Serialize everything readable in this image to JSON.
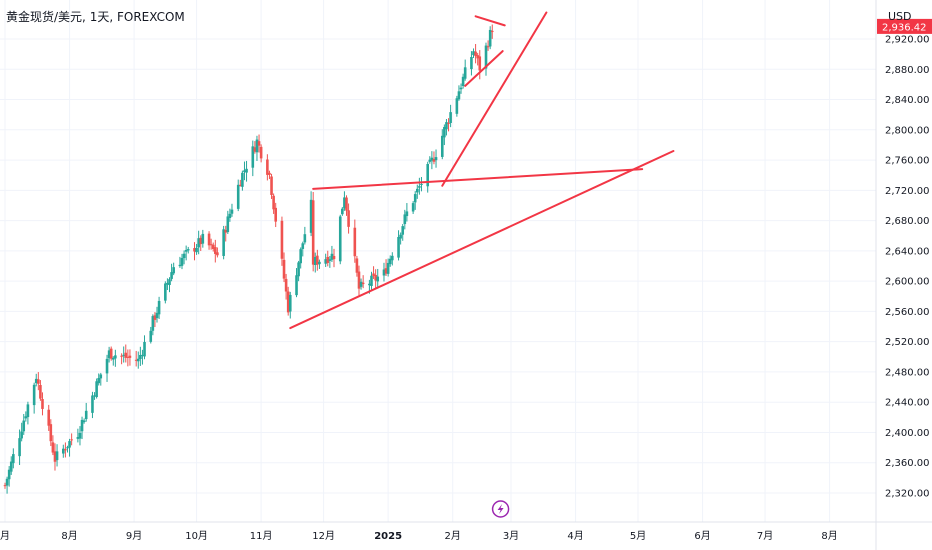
{
  "header": {
    "symbol": "黄金现货/美元",
    "interval": "1天",
    "exchange": "FOREXCOM",
    "currency": "USD"
  },
  "colors": {
    "up": "#26a69a",
    "down": "#ef5350",
    "drawing": "#f23645",
    "grid": "#f0f3fa",
    "axis": "#e0e3eb",
    "price_tag": "#f23645",
    "event_icon": "#9c27b0"
  },
  "chart_data": {
    "type": "candlestick",
    "x_axis": {
      "labels": [
        {
          "label": "月",
          "date": "2024-07-01",
          "bold": false
        },
        {
          "label": "8月",
          "date": "2024-08-01",
          "bold": false
        },
        {
          "label": "9月",
          "date": "2024-09-01",
          "bold": false
        },
        {
          "label": "10月",
          "date": "2024-10-01",
          "bold": false
        },
        {
          "label": "11月",
          "date": "2024-11-01",
          "bold": false
        },
        {
          "label": "12月",
          "date": "2024-12-01",
          "bold": false
        },
        {
          "label": "2025",
          "date": "2025-01-01",
          "bold": true
        },
        {
          "label": "2月",
          "date": "2025-02-01",
          "bold": false
        },
        {
          "label": "3月",
          "date": "2025-03-01",
          "bold": false
        },
        {
          "label": "4月",
          "date": "2025-04-01",
          "bold": false
        },
        {
          "label": "5月",
          "date": "2025-05-01",
          "bold": false
        },
        {
          "label": "6月",
          "date": "2025-06-01",
          "bold": false
        },
        {
          "label": "7月",
          "date": "2025-07-01",
          "bold": false
        },
        {
          "label": "8月",
          "date": "2025-08-01",
          "bold": false
        }
      ]
    },
    "y_axis": {
      "range": [
        2290,
        2975
      ],
      "ticks": [
        "2,320.00",
        "2,360.00",
        "2,400.00",
        "2,440.00",
        "2,480.00",
        "2,520.00",
        "2,560.00",
        "2,600.00",
        "2,640.00",
        "2,680.00",
        "2,720.00",
        "2,760.00",
        "2,800.00",
        "2,840.00",
        "2,880.00",
        "2,920.00"
      ]
    },
    "last_price": {
      "value": 2936,
      "label": "2,936.42"
    },
    "anchors": [
      [
        "2024-07-01",
        2330
      ],
      [
        "2024-07-16",
        2475
      ],
      [
        "2024-07-25",
        2365
      ],
      [
        "2024-08-05",
        2400
      ],
      [
        "2024-08-20",
        2505
      ],
      [
        "2024-09-03",
        2495
      ],
      [
        "2024-09-20",
        2620
      ],
      [
        "2024-10-04",
        2655
      ],
      [
        "2024-10-11",
        2635
      ],
      [
        "2024-10-22",
        2735
      ],
      [
        "2024-10-30",
        2785
      ],
      [
        "2024-11-05",
        2740
      ],
      [
        "2024-11-14",
        2565
      ],
      [
        "2024-11-25",
        2700
      ],
      [
        "2024-11-26",
        2625
      ],
      [
        "2024-12-06",
        2635
      ],
      [
        "2024-12-11",
        2715
      ],
      [
        "2024-12-18",
        2590
      ],
      [
        "2024-12-30",
        2610
      ],
      [
        "2025-01-10",
        2690
      ],
      [
        "2025-01-24",
        2770
      ],
      [
        "2025-02-11",
        2905
      ],
      [
        "2025-02-14",
        2882
      ],
      [
        "2025-02-20",
        2935
      ]
    ],
    "trendlines": [
      {
        "from": [
          "2024-11-15",
          2538
        ],
        "to": [
          "2025-05-18",
          2772
        ]
      },
      {
        "from": [
          "2024-11-26",
          2722
        ],
        "to": [
          "2025-05-03",
          2748
        ]
      },
      {
        "from": [
          "2025-01-27",
          2726
        ],
        "to": [
          "2025-03-18",
          2955
        ]
      },
      {
        "from": [
          "2025-02-07",
          2858
        ],
        "to": [
          "2025-02-25",
          2904
        ]
      },
      {
        "from": [
          "2025-02-12",
          2950
        ],
        "to": [
          "2025-02-26",
          2938
        ]
      }
    ],
    "event_marker": {
      "date": "2025-02-24",
      "icon": "lightning-icon"
    }
  }
}
